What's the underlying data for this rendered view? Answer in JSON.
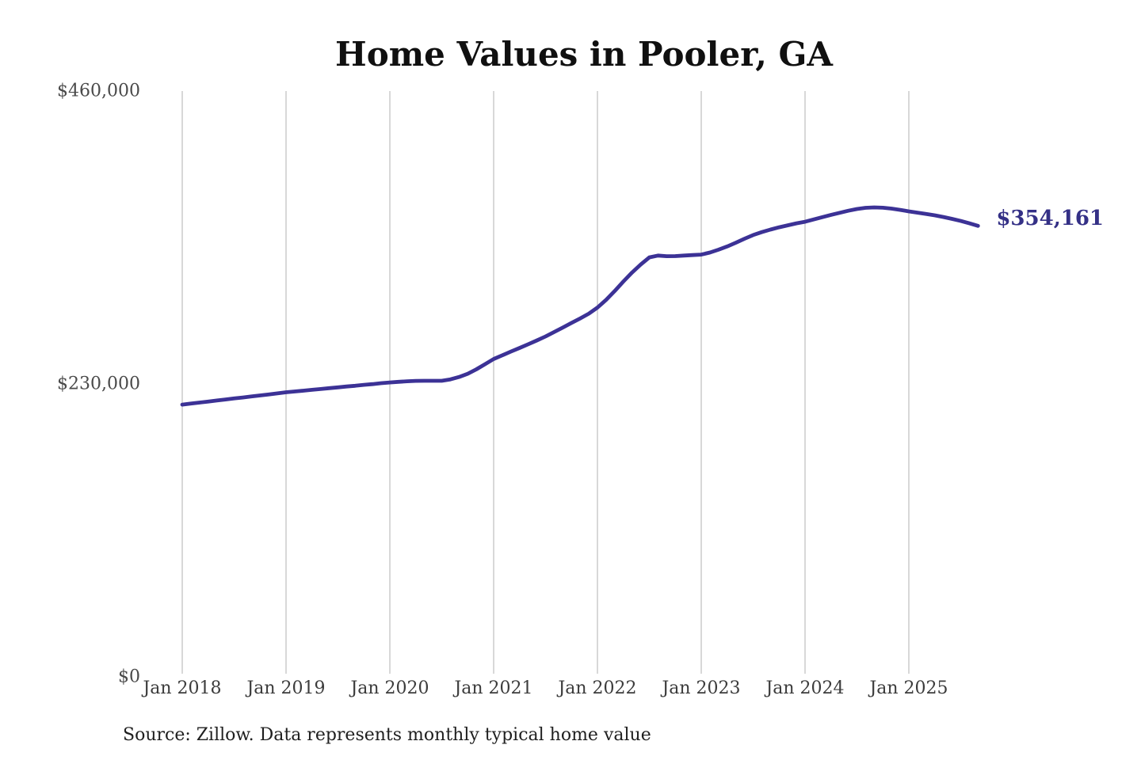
{
  "chart_data": {
    "type": "line",
    "title": "Home Values in Pooler, GA",
    "xlabel": "",
    "ylabel": "",
    "ylim": [
      0,
      460000
    ],
    "grid": "vertical-only",
    "legend": "none",
    "end_label": "$354,161",
    "end_value": 354161,
    "source": "Source: Zillow. Data represents monthly typical home value",
    "x_tick_labels": [
      "Jan 2018",
      "Jan 2019",
      "Jan 2020",
      "Jan 2021",
      "Jan 2022",
      "Jan 2023",
      "Jan 2024",
      "Jan 2025"
    ],
    "y_ticks": [
      {
        "label": "$0",
        "value": 0
      },
      {
        "label": "$230,000",
        "value": 230000
      },
      {
        "label": "$460,000",
        "value": 460000
      }
    ],
    "series": [
      {
        "name": "Monthly typical home value",
        "months": [
          "Jan 2018",
          "Feb 2018",
          "Mar 2018",
          "Apr 2018",
          "May 2018",
          "Jun 2018",
          "Jul 2018",
          "Aug 2018",
          "Sep 2018",
          "Oct 2018",
          "Nov 2018",
          "Dec 2018",
          "Jan 2019",
          "Feb 2019",
          "Mar 2019",
          "Apr 2019",
          "May 2019",
          "Jun 2019",
          "Jul 2019",
          "Aug 2019",
          "Sep 2019",
          "Oct 2019",
          "Nov 2019",
          "Dec 2019",
          "Jan 2020",
          "Feb 2020",
          "Mar 2020",
          "Apr 2020",
          "May 2020",
          "Jun 2020",
          "Jul 2020",
          "Aug 2020",
          "Sep 2020",
          "Oct 2020",
          "Nov 2020",
          "Dec 2020",
          "Jan 2021",
          "Feb 2021",
          "Mar 2021",
          "Apr 2021",
          "May 2021",
          "Jun 2021",
          "Jul 2021",
          "Aug 2021",
          "Sep 2021",
          "Oct 2021",
          "Nov 2021",
          "Dec 2021",
          "Jan 2022",
          "Feb 2022",
          "Mar 2022",
          "Apr 2022",
          "May 2022",
          "Jun 2022",
          "Jul 2022",
          "Aug 2022",
          "Sep 2022",
          "Oct 2022",
          "Nov 2022",
          "Dec 2022",
          "Jan 2023",
          "Feb 2023",
          "Mar 2023",
          "Apr 2023",
          "May 2023",
          "Jun 2023",
          "Jul 2023",
          "Aug 2023",
          "Sep 2023",
          "Oct 2023",
          "Nov 2023",
          "Dec 2023",
          "Jan 2024",
          "Feb 2024",
          "Mar 2024",
          "Apr 2024",
          "May 2024",
          "Jun 2024",
          "Jul 2024",
          "Aug 2024",
          "Sep 2024",
          "Oct 2024",
          "Nov 2024",
          "Dec 2024",
          "Jan 2025",
          "Feb 2025",
          "Mar 2025",
          "Apr 2025",
          "May 2025",
          "Jun 2025",
          "Jul 2025",
          "Aug 2025",
          "Sep 2025"
        ],
        "values": [
          213800,
          214600,
          215400,
          216200,
          217000,
          217800,
          218600,
          219400,
          220200,
          221000,
          221800,
          222600,
          223500,
          224100,
          224700,
          225400,
          226000,
          226700,
          227300,
          228000,
          228600,
          229300,
          229900,
          230600,
          231200,
          231700,
          232100,
          232400,
          232500,
          232500,
          232500,
          233600,
          235500,
          238000,
          241500,
          245500,
          249600,
          252500,
          255400,
          258300,
          261200,
          264200,
          267300,
          270800,
          274300,
          277900,
          281500,
          285200,
          290000,
          296000,
          303000,
          310500,
          317500,
          323800,
          329400,
          330800,
          330300,
          330400,
          330800,
          331200,
          331600,
          333200,
          335400,
          338000,
          340900,
          344000,
          346900,
          349200,
          351200,
          353000,
          354600,
          356100,
          357400,
          359200,
          361000,
          362800,
          364400,
          366000,
          367400,
          368300,
          368600,
          368400,
          367700,
          366700,
          365500,
          364500,
          363500,
          362400,
          361100,
          359600,
          358000,
          356100,
          354161
        ]
      }
    ],
    "colors": {
      "line": "#3c3296",
      "end_label": "#343086",
      "gridline": "#cbcbcb",
      "title": "#101010",
      "y_tick_text": "#4a4a4a",
      "x_tick_text": "#3c3c3c",
      "source_text": "#1f1f1f",
      "background": "#ffffff"
    }
  }
}
